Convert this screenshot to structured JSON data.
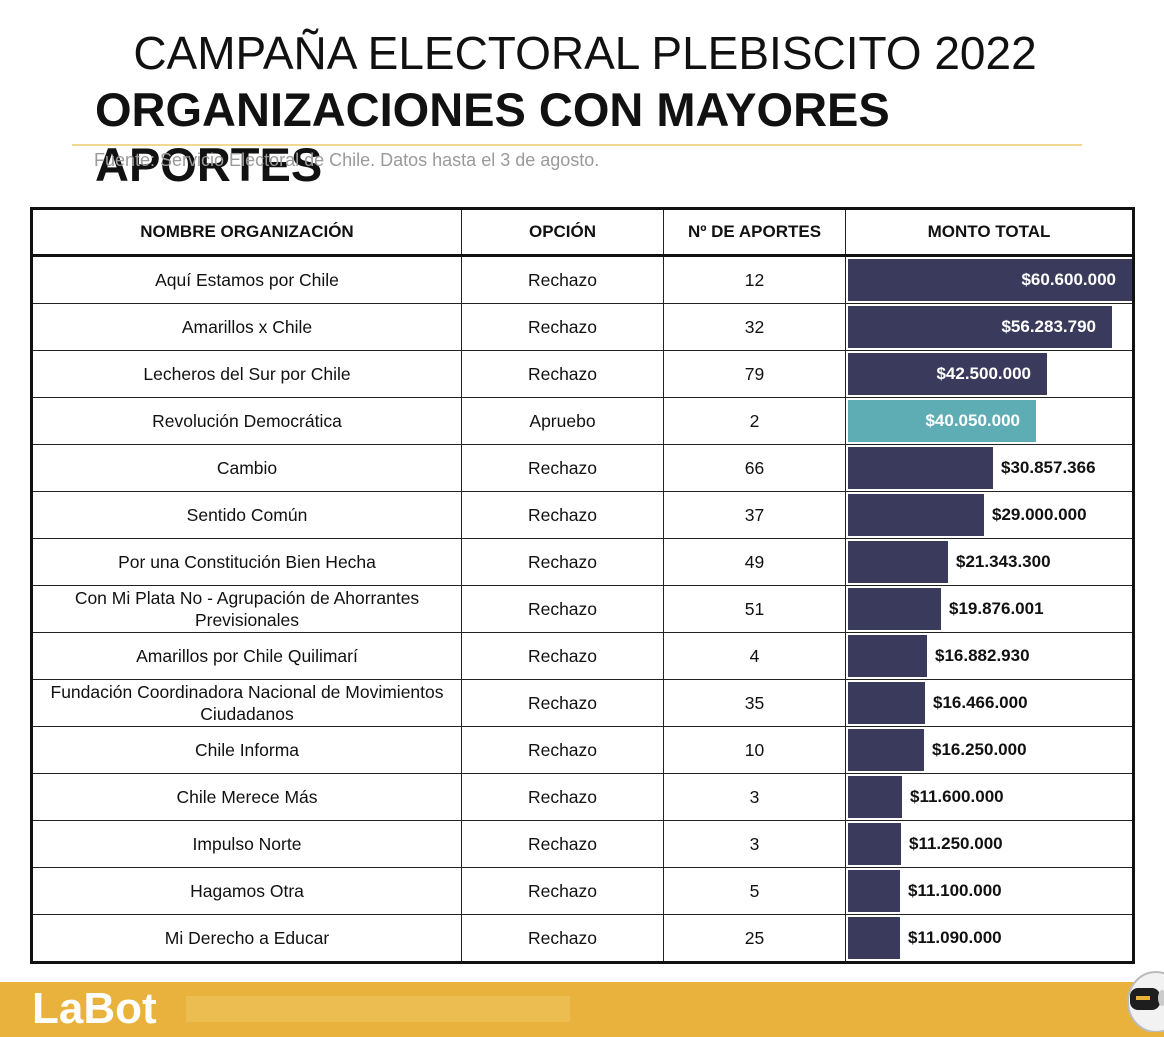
{
  "header": {
    "title": "CAMPAÑA ELECTORAL PLEBISCITO 2022",
    "subtitle": "ORGANIZACIONES CON MAYORES APORTES",
    "source": "Fuente: Servicio Electoral de Chile. Datos hasta el 3 de agosto."
  },
  "colors": {
    "rechazo": "#3a3a5c",
    "apruebo": "#5fadb4",
    "accent": "#e8b23c"
  },
  "footer": {
    "brand": "LaBot",
    "icon": "robot-mascot-icon"
  },
  "chart_data": {
    "type": "table",
    "columns": [
      "NOMBRE ORGANIZACIÓN",
      "OPCIÓN",
      "Nº DE APORTES",
      "MONTO TOTAL"
    ],
    "rows": [
      {
        "name": "Aquí Estamos por Chile",
        "option": "Rechazo",
        "count": "12",
        "amount": 60600000,
        "amount_label": "$60.600.000"
      },
      {
        "name": "Amarillos x Chile",
        "option": "Rechazo",
        "count": "32",
        "amount": 56283790,
        "amount_label": "$56.283.790"
      },
      {
        "name": "Lecheros del Sur por Chile",
        "option": "Rechazo",
        "count": "79",
        "amount": 42500000,
        "amount_label": "$42.500.000"
      },
      {
        "name": "Revolución Democrática",
        "option": "Apruebo",
        "count": "2",
        "amount": 40050000,
        "amount_label": "$40.050.000"
      },
      {
        "name": "Cambio",
        "option": "Rechazo",
        "count": "66",
        "amount": 30857366,
        "amount_label": "$30.857.366"
      },
      {
        "name": "Sentido Común",
        "option": "Rechazo",
        "count": "37",
        "amount": 29000000,
        "amount_label": "$29.000.000"
      },
      {
        "name": "Por una Constitución Bien Hecha",
        "option": "Rechazo",
        "count": "49",
        "amount": 21343300,
        "amount_label": "$21.343.300"
      },
      {
        "name": "Con Mi Plata No - Agrupación de Ahorrantes Previsionales",
        "option": "Rechazo",
        "count": "51",
        "amount": 19876001,
        "amount_label": "$19.876.001"
      },
      {
        "name": "Amarillos por Chile Quilimarí",
        "option": "Rechazo",
        "count": "4",
        "amount": 16882930,
        "amount_label": "$16.882.930"
      },
      {
        "name": "Fundación Coordinadora Nacional de Movimientos Ciudadanos",
        "option": "Rechazo",
        "count": "35",
        "amount": 16466000,
        "amount_label": "$16.466.000"
      },
      {
        "name": "Chile Informa",
        "option": "Rechazo",
        "count": "10",
        "amount": 16250000,
        "amount_label": "$16.250.000"
      },
      {
        "name": "Chile Merece Más",
        "option": "Rechazo",
        "count": "3",
        "amount": 11600000,
        "amount_label": "$11.600.000"
      },
      {
        "name": "Impulso Norte",
        "option": "Rechazo",
        "count": "3",
        "amount": 11250000,
        "amount_label": "$11.250.000"
      },
      {
        "name": "Hagamos Otra",
        "option": "Rechazo",
        "count": "5",
        "amount": 11100000,
        "amount_label": "$11.100.000"
      },
      {
        "name": "Mi Derecho a Educar",
        "option": "Rechazo",
        "count": "25",
        "amount": 11090000,
        "amount_label": "$11.090.000"
      }
    ]
  }
}
